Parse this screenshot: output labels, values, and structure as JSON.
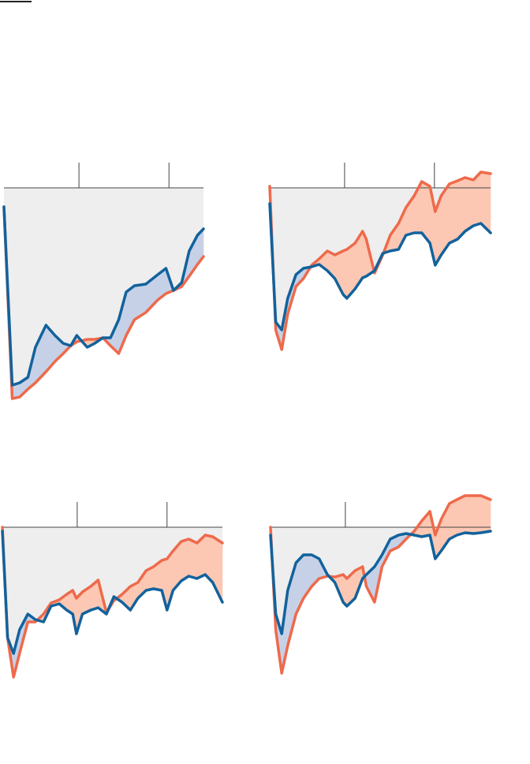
{
  "chart_data": [
    {
      "type": "line",
      "background_fill": "#eeeeee",
      "x": [
        0,
        1.1,
        2.1,
        3.2,
        4.2,
        5.6,
        6.8,
        7.9,
        8.9,
        9.7,
        11.1,
        12.1,
        13.2,
        14.2,
        15.3,
        16.3,
        17.4,
        18.9,
        20.5,
        21.6,
        22.6,
        23.7,
        24.7,
        25.8,
        26.6
      ],
      "xlim": [
        0,
        26.6
      ],
      "xticks": [
        10,
        22
      ],
      "ylim": [
        -28,
        5
      ],
      "series": [
        {
          "color": "#12629c",
          "fill": "#c6d1e8",
          "values": [
            -2.4,
            -25,
            -24.7,
            -24,
            -20.2,
            -17.4,
            -18.7,
            -19.7,
            -20,
            -18.7,
            -20.2,
            -19.7,
            -19,
            -19,
            -16.7,
            -13.2,
            -12.4,
            -12.2,
            -11,
            -10.2,
            -13,
            -12,
            -8,
            -6,
            -5.2
          ]
        },
        {
          "color": "#ee6a4b",
          "fill": "#fcc7b3",
          "values": [
            -2.4,
            -26.7,
            -26.5,
            -25.5,
            -24.7,
            -23.3,
            -22,
            -21,
            -20,
            -19.5,
            -19.2,
            -19.2,
            -19,
            -20,
            -21,
            -18.7,
            -16.7,
            -15.8,
            -14.2,
            -13.4,
            -13,
            -12.5,
            -11.2,
            -9.7,
            -8.7
          ]
        }
      ]
    },
    {
      "type": "line",
      "background_fill": "#eeeeee",
      "x": [
        0,
        0.8,
        1.6,
        2.4,
        3.5,
        4.5,
        5.6,
        6.6,
        7.7,
        8.7,
        9.8,
        10.3,
        11.4,
        12.4,
        12.9,
        14,
        15.1,
        16.1,
        17.2,
        18.2,
        19.3,
        20.3,
        21.4,
        22.1,
        22.9,
        24,
        25.1,
        26.1,
        27.2,
        28.2,
        29.5
      ],
      "xlim": [
        0,
        29.5
      ],
      "xticks": [
        10,
        22
      ],
      "ylim": [
        -28,
        5
      ],
      "series": [
        {
          "color": "#12629c",
          "fill": "#c6d1e8",
          "values": [
            -2,
            -17,
            -18,
            -14,
            -11,
            -10.2,
            -10,
            -9.7,
            -10.5,
            -11.5,
            -13.5,
            -14,
            -12.8,
            -11.4,
            -11.2,
            -10.5,
            -8.3,
            -8,
            -7.8,
            -6,
            -5.7,
            -5.7,
            -7,
            -9.8,
            -8.5,
            -7,
            -6.5,
            -5.5,
            -4.8,
            -4.5,
            -5.7
          ]
        },
        {
          "color": "#ee6a4b",
          "fill": "#fcc7b3",
          "values": [
            0.2,
            -18,
            -20.5,
            -16,
            -12.5,
            -11.5,
            -9.8,
            -9,
            -8,
            -8.5,
            -8,
            -7.8,
            -7,
            -5.5,
            -6.5,
            -10.8,
            -8.5,
            -6,
            -4.5,
            -2.5,
            -1,
            0.8,
            0.2,
            -3,
            -1,
            0.5,
            0.9,
            1.3,
            1,
            2,
            1.8
          ]
        }
      ]
    },
    {
      "type": "line",
      "background_fill": "#eeeeee",
      "x": [
        0,
        0.7,
        1.5,
        2.3,
        3.4,
        4.4,
        5.5,
        6.5,
        7.6,
        8.6,
        9.4,
        9.9,
        10.7,
        11.8,
        12.8,
        13.9,
        14.9,
        16,
        17.1,
        18.1,
        19.2,
        20.2,
        21.3,
        22,
        22.8,
        23.9,
        24.9,
        26,
        27.1,
        28.1,
        29.4
      ],
      "xlim": [
        0,
        29.4
      ],
      "xticks": [
        10,
        22
      ],
      "ylim": [
        -28,
        5
      ],
      "series": [
        {
          "color": "#12629c",
          "fill": "#c6d1e8",
          "values": [
            -0.5,
            -14,
            -16,
            -13,
            -11,
            -11.7,
            -12,
            -10,
            -9.7,
            -10.5,
            -11,
            -13.5,
            -11,
            -10.5,
            -10.2,
            -11,
            -8.8,
            -9.5,
            -10.5,
            -9,
            -8,
            -7.8,
            -8,
            -10.5,
            -8,
            -6.8,
            -6.2,
            -6.5,
            -6,
            -7,
            -9.5
          ]
        },
        {
          "color": "#ee6a4b",
          "fill": "#fcc7b3",
          "values": [
            0,
            -14,
            -19,
            -16,
            -12,
            -12,
            -11,
            -9.6,
            -9.2,
            -8.5,
            -8,
            -9,
            -8.2,
            -7.5,
            -6.7,
            -10.8,
            -9.3,
            -8.5,
            -7.5,
            -7,
            -5.5,
            -5,
            -4.2,
            -4,
            -3,
            -1.8,
            -1.5,
            -2,
            -1,
            -1.2,
            -2
          ]
        }
      ]
    },
    {
      "type": "line",
      "background_fill": "#eeeeee",
      "x": [
        0,
        0.7,
        1.5,
        2.3,
        3.4,
        4.4,
        5.5,
        6.5,
        7.6,
        8.6,
        9.7,
        10.2,
        11.3,
        12.3,
        12.8,
        13.9,
        14.9,
        16,
        17.1,
        18.1,
        19.2,
        20.2,
        21.3,
        22,
        22.8,
        23.9,
        24.9,
        26,
        27.1,
        28.1,
        29.4
      ],
      "xlim": [
        0,
        29.4
      ],
      "xticks": [
        10
      ],
      "ylim": [
        -28,
        5
      ],
      "series": [
        {
          "color": "#12629c",
          "fill": "#c6d1e8",
          "values": [
            -1,
            -11,
            -13.5,
            -8,
            -4.5,
            -3.5,
            -3.5,
            -4,
            -6,
            -7,
            -9.5,
            -10,
            -9,
            -6.5,
            -6,
            -5,
            -3.5,
            -1.5,
            -1,
            -0.8,
            -1,
            -1.2,
            -1,
            -4,
            -3,
            -1.5,
            -1,
            -0.7,
            -0.8,
            -0.7,
            -0.5
          ]
        },
        {
          "color": "#ee6a4b",
          "fill": "#fcc7b3",
          "values": [
            0,
            -13,
            -18.5,
            -15,
            -11,
            -9,
            -7.5,
            -6.5,
            -6.2,
            -6.3,
            -6,
            -6.5,
            -5.5,
            -5,
            -7.5,
            -9.5,
            -5,
            -3,
            -2.5,
            -1.5,
            -0.5,
            0.8,
            2,
            -1,
            1,
            3,
            3.5,
            4,
            4,
            4,
            3.5
          ]
        }
      ]
    }
  ]
}
